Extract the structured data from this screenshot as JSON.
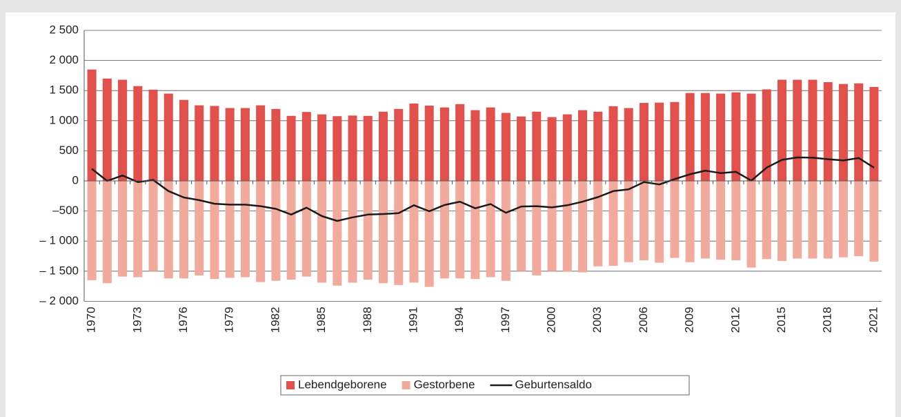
{
  "chart_data": {
    "type": "bar",
    "categories": [
      "1970",
      null,
      null,
      "1973",
      null,
      null,
      "1976",
      null,
      null,
      "1979",
      null,
      null,
      "1982",
      null,
      null,
      "1985",
      null,
      null,
      "1988",
      null,
      null,
      "1991",
      null,
      null,
      "1994",
      null,
      null,
      "1997",
      null,
      null,
      "2000",
      null,
      null,
      "2003",
      null,
      null,
      "2006",
      null,
      null,
      "2009",
      null,
      null,
      "2012",
      null,
      null,
      "2015",
      null,
      null,
      "2018",
      null,
      null,
      "2021"
    ],
    "series": [
      {
        "name": "Lebendgeborene",
        "color": "#e2504c",
        "type": "bar",
        "values": [
          1850,
          1700,
          1680,
          1575,
          1515,
          1450,
          1345,
          1255,
          1245,
          1210,
          1210,
          1255,
          1195,
          1080,
          1145,
          1105,
          1075,
          1085,
          1080,
          1150,
          1195,
          1285,
          1250,
          1220,
          1275,
          1175,
          1220,
          1130,
          1070,
          1150,
          1060,
          1105,
          1175,
          1150,
          1240,
          1210,
          1295,
          1300,
          1310,
          1460,
          1460,
          1450,
          1470,
          1450,
          1520,
          1680,
          1680,
          1680,
          1640,
          1610,
          1620,
          1560
        ]
      },
      {
        "name": "Gestorbene",
        "color": "#f2aa9c",
        "type": "bar",
        "values": [
          -1650,
          -1700,
          -1590,
          -1600,
          -1500,
          -1620,
          -1620,
          -1570,
          -1630,
          -1610,
          -1600,
          -1680,
          -1660,
          -1640,
          -1590,
          -1690,
          -1740,
          -1690,
          -1640,
          -1700,
          -1730,
          -1690,
          -1760,
          -1620,
          -1620,
          -1630,
          -1600,
          -1660,
          -1500,
          -1570,
          -1500,
          -1510,
          -1520,
          -1420,
          -1410,
          -1350,
          -1320,
          -1360,
          -1280,
          -1350,
          -1290,
          -1310,
          -1320,
          -1440,
          -1300,
          -1330,
          -1290,
          -1290,
          -1290,
          -1270,
          -1250,
          -1340
        ]
      },
      {
        "name": "Geburtensaldo",
        "color": "#1a1a1a",
        "type": "line",
        "values": [
          200,
          0,
          90,
          -20,
          15,
          -170,
          -275,
          -320,
          -380,
          -395,
          -395,
          -420,
          -465,
          -560,
          -445,
          -585,
          -665,
          -605,
          -560,
          -550,
          -535,
          -405,
          -505,
          -400,
          -345,
          -455,
          -385,
          -530,
          -425,
          -420,
          -440,
          -405,
          -345,
          -270,
          -170,
          -140,
          -20,
          -60,
          30,
          110,
          170,
          130,
          150,
          5,
          220,
          350,
          390,
          385,
          360,
          340,
          380,
          220
        ]
      }
    ],
    "ylim": [
      -2000,
      2500
    ],
    "yticks": [
      {
        "value": -2000,
        "label": "– 2 000"
      },
      {
        "value": -1500,
        "label": "– 1 500"
      },
      {
        "value": -1000,
        "label": "– 1 000"
      },
      {
        "value": -500,
        "label": "–500"
      },
      0,
      500,
      {
        "value": 1000,
        "label": "1 000"
      },
      {
        "value": 1500,
        "label": "1 500"
      },
      {
        "value": 2000,
        "label": "2 000"
      },
      {
        "value": 2500,
        "label": "2 500"
      }
    ],
    "grid": true,
    "legend": "bottom"
  }
}
